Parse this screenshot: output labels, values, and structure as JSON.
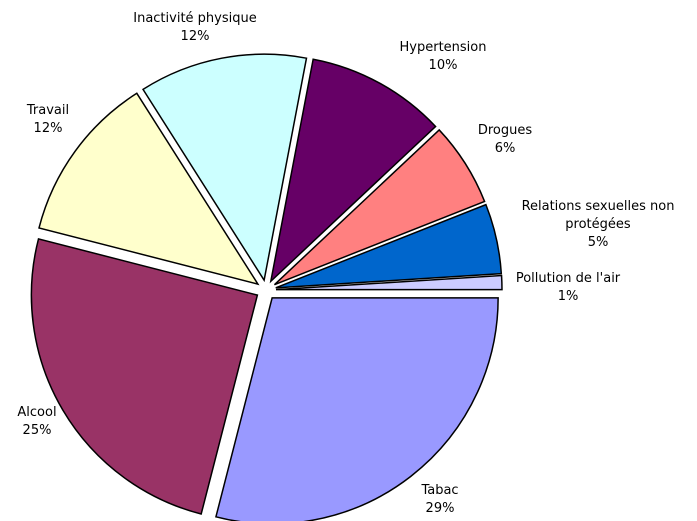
{
  "chart_data": {
    "type": "pie",
    "categories": [
      "Tabac",
      "Alcool",
      "Travail",
      "Inactivité physique",
      "Hypertension",
      "Drogues",
      "Relations sexuelles non protégées",
      "Pollution de l'air"
    ],
    "values": [
      29,
      25,
      12,
      12,
      10,
      6,
      5,
      1
    ],
    "value_labels": [
      "29%",
      "25%",
      "12%",
      "12%",
      "10%",
      "6%",
      "5%",
      "1%"
    ],
    "colors": [
      "#9999ff",
      "#993366",
      "#ffffcc",
      "#ccffff",
      "#660066",
      "#ff8080",
      "#0066cc",
      "#ccccff"
    ]
  }
}
